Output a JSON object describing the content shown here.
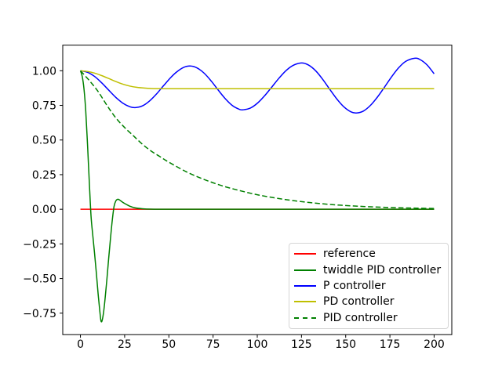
{
  "window": {
    "background": "#ffffff"
  },
  "chart_data": {
    "type": "line",
    "title": "",
    "xlabel": "",
    "ylabel": "",
    "grid": false,
    "frame_color": "#000000",
    "tick_label_color": "#000000",
    "xlim": [
      -10,
      210
    ],
    "ylim": [
      -0.905,
      1.185
    ],
    "xticks": {
      "values": [
        0,
        25,
        50,
        75,
        100,
        125,
        150,
        175,
        200
      ],
      "labels": [
        "0",
        "25",
        "50",
        "75",
        "100",
        "125",
        "150",
        "175",
        "200"
      ]
    },
    "yticks": {
      "values": [
        1.0,
        0.75,
        0.5,
        0.25,
        0.0,
        -0.25,
        -0.5,
        -0.75
      ],
      "labels": [
        "1.00",
        "0.75",
        "0.50",
        "0.25",
        "0.00",
        "−0.25",
        "−0.50",
        "−0.75"
      ]
    },
    "legend": {
      "position": "lower right",
      "border_color": "#d5d5d5",
      "background": "#ffffff"
    },
    "series": [
      {
        "name": "reference",
        "color": "#ff0000",
        "style": "solid",
        "x": [
          0,
          200
        ],
        "y": [
          0,
          0
        ]
      },
      {
        "name": "twiddle PID controller",
        "color": "#008000",
        "style": "solid",
        "x": [
          0,
          1,
          2,
          3,
          4,
          5,
          6,
          7,
          8,
          9,
          10,
          11,
          11.7,
          12.5,
          13.5,
          15,
          16,
          17,
          18,
          19,
          20,
          21,
          22,
          24,
          26,
          28,
          31,
          35,
          40,
          50,
          70,
          100,
          150,
          200
        ],
        "y": [
          1.0,
          0.96,
          0.87,
          0.71,
          0.47,
          0.2,
          -0.05,
          -0.19,
          -0.32,
          -0.46,
          -0.61,
          -0.74,
          -0.81,
          -0.79,
          -0.7,
          -0.5,
          -0.35,
          -0.21,
          -0.08,
          0.02,
          0.06,
          0.072,
          0.068,
          0.05,
          0.035,
          0.022,
          0.01,
          0.004,
          0.001,
          0,
          0,
          0,
          0,
          0
        ]
      },
      {
        "name": "P controller",
        "color": "#0000ff",
        "style": "solid",
        "x": [
          0,
          4,
          8,
          12,
          16,
          20,
          24,
          28,
          31,
          35,
          39,
          43,
          47,
          51,
          54,
          58,
          62,
          66,
          70,
          74,
          78,
          82,
          86,
          90,
          92,
          96,
          100,
          104,
          108,
          112,
          116,
          120,
          125,
          129,
          133,
          137,
          141,
          145,
          149,
          153,
          156,
          160,
          164,
          168,
          172,
          176,
          180,
          184,
          189,
          192,
          196,
          200
        ],
        "y": [
          1.0,
          0.989,
          0.959,
          0.913,
          0.86,
          0.808,
          0.766,
          0.74,
          0.734,
          0.746,
          0.781,
          0.832,
          0.892,
          0.95,
          0.987,
          1.022,
          1.034,
          1.02,
          0.982,
          0.925,
          0.859,
          0.797,
          0.748,
          0.721,
          0.718,
          0.73,
          0.765,
          0.817,
          0.879,
          0.942,
          0.998,
          1.037,
          1.056,
          1.041,
          1.0,
          0.938,
          0.866,
          0.796,
          0.739,
          0.703,
          0.695,
          0.709,
          0.75,
          0.811,
          0.883,
          0.957,
          1.022,
          1.068,
          1.09,
          1.081,
          1.042,
          0.978
        ]
      },
      {
        "name": "PD controller",
        "color": "#bfbf00",
        "style": "solid",
        "x": [
          0,
          4,
          8,
          12,
          16,
          20,
          24,
          28,
          32,
          36,
          40,
          45,
          50,
          60,
          80,
          120,
          160,
          200
        ],
        "y": [
          1.0,
          0.995,
          0.983,
          0.965,
          0.944,
          0.922,
          0.903,
          0.889,
          0.88,
          0.875,
          0.872,
          0.871,
          0.87,
          0.87,
          0.87,
          0.87,
          0.87,
          0.87
        ]
      },
      {
        "name": "PID controller",
        "color": "#008000",
        "style": "dashed",
        "x": [
          0,
          5,
          10,
          15,
          20,
          25,
          30,
          35,
          40,
          45,
          50,
          60,
          70,
          80,
          90,
          100,
          110,
          120,
          130,
          140,
          150,
          160,
          170,
          180,
          190,
          200
        ],
        "y": [
          1.0,
          0.93,
          0.85,
          0.75,
          0.66,
          0.59,
          0.53,
          0.47,
          0.42,
          0.38,
          0.34,
          0.27,
          0.215,
          0.17,
          0.135,
          0.105,
          0.082,
          0.063,
          0.048,
          0.036,
          0.027,
          0.02,
          0.015,
          0.011,
          0.008,
          0.006
        ]
      }
    ]
  }
}
